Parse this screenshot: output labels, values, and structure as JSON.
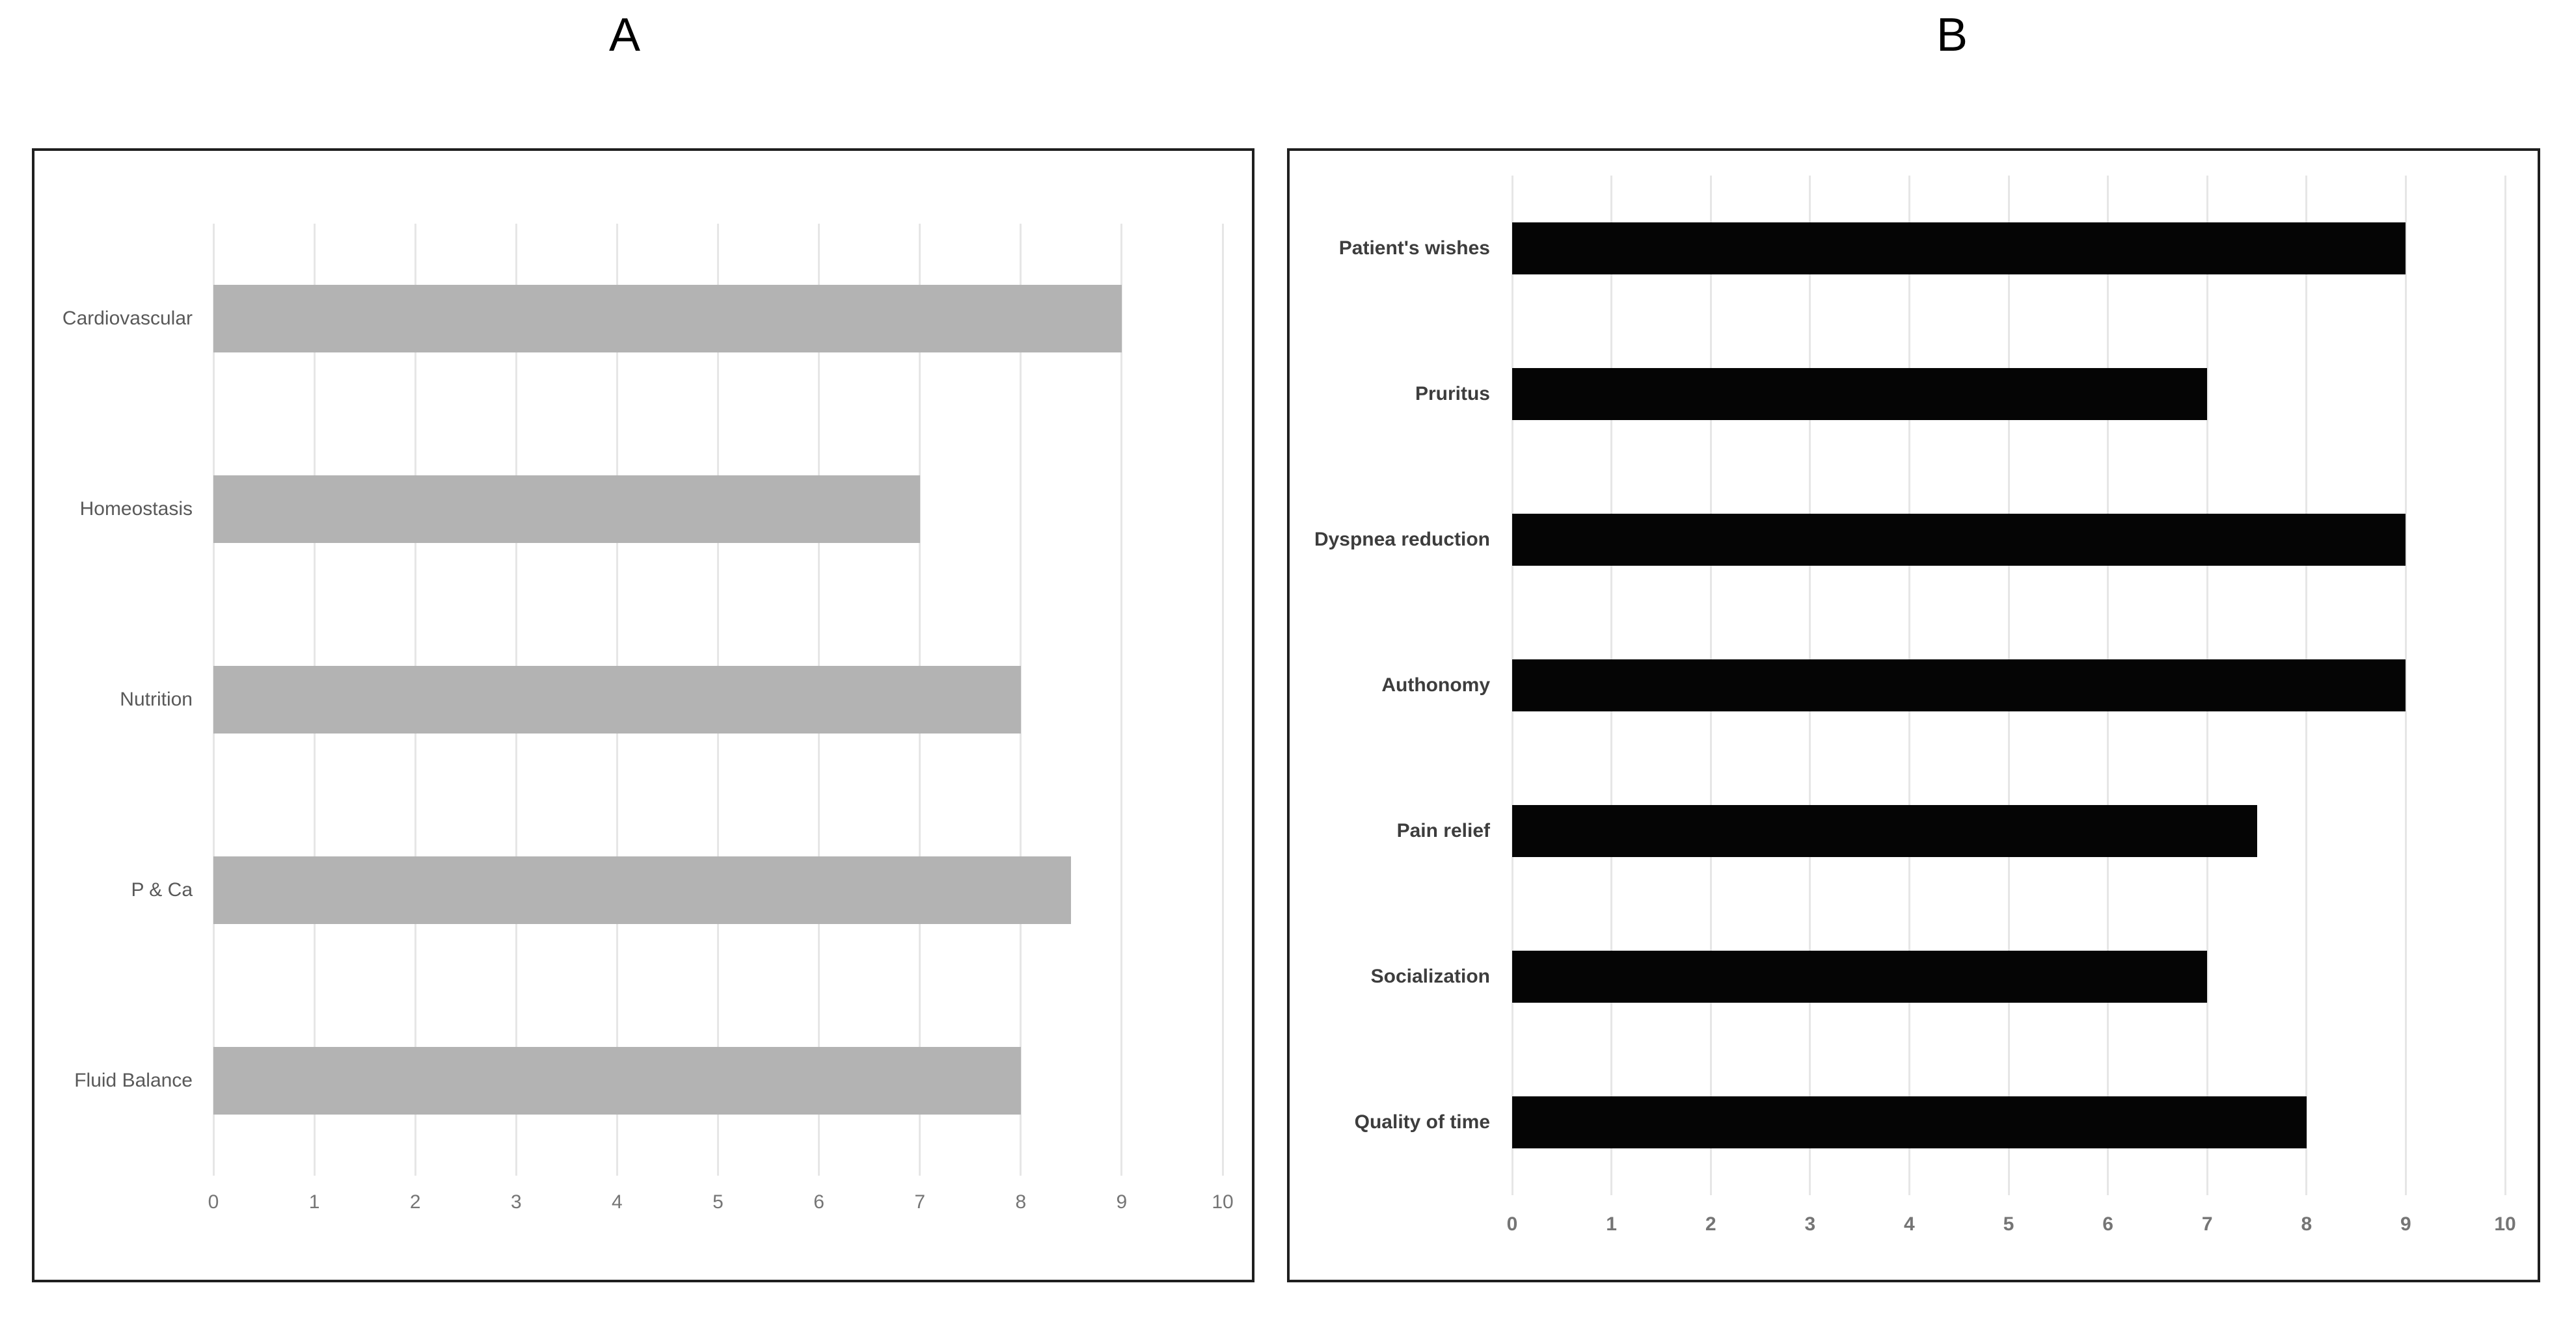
{
  "figure": {
    "panel_a_title": "A",
    "panel_b_title": "B"
  },
  "colors": {
    "panel_border": "#1f1f1f",
    "gridline": "#e6e6e6",
    "bar_gray": "#b3b3b3",
    "bar_black": "#050505",
    "axis_text": "#757575",
    "category_text_a": "#595959",
    "category_text_b": "#3d3d3d"
  },
  "chart_data": [
    {
      "type": "bar",
      "orientation": "horizontal",
      "title": "A",
      "categories": [
        "Cardiovascular",
        "Homeostasis",
        "Nutrition",
        "P & Ca",
        "Fluid Balance"
      ],
      "values": [
        9,
        7,
        8,
        8.5,
        8
      ],
      "xlim": [
        0,
        10
      ],
      "xticks": [
        0,
        1,
        2,
        3,
        4,
        5,
        6,
        7,
        8,
        9,
        10
      ],
      "xlabel": "",
      "ylabel": "",
      "bar_color": "#b3b3b3",
      "grid": "vertical",
      "legend": "none"
    },
    {
      "type": "bar",
      "orientation": "horizontal",
      "title": "B",
      "categories": [
        "Patient's wishes",
        "Pruritus",
        "Dyspnea reduction",
        "Authonomy",
        "Pain relief",
        "Socialization",
        "Quality of time"
      ],
      "values": [
        9,
        7,
        9,
        9,
        7.5,
        7,
        8
      ],
      "xlim": [
        0,
        10
      ],
      "xticks": [
        0,
        1,
        2,
        3,
        4,
        5,
        6,
        7,
        8,
        9,
        10
      ],
      "xlabel": "",
      "ylabel": "",
      "bar_color": "#050505",
      "grid": "vertical",
      "legend": "none"
    }
  ]
}
